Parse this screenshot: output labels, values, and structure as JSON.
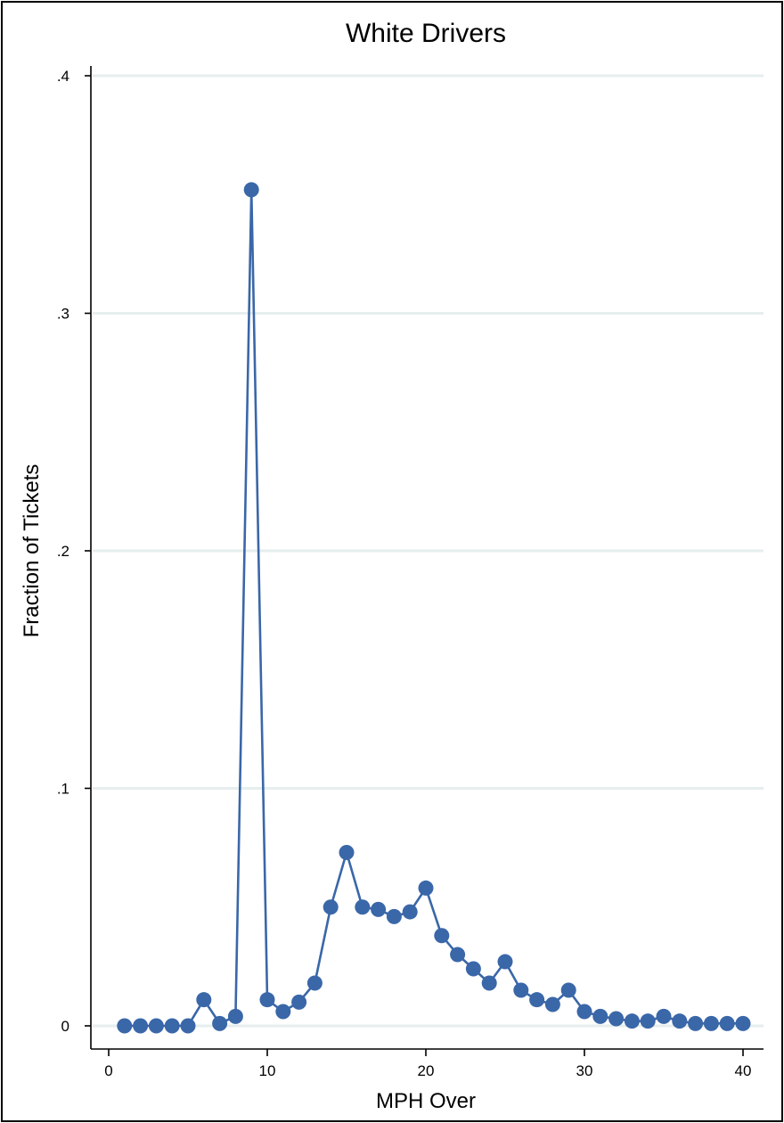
{
  "chart_data": {
    "type": "line",
    "title": "White Drivers",
    "xlabel": "MPH Over",
    "ylabel": "Fraction of Tickets",
    "xlim": [
      -1,
      41
    ],
    "ylim": [
      0,
      0.4
    ],
    "x_ticks": [
      0,
      10,
      20,
      30,
      40
    ],
    "x_tick_labels": [
      "0",
      "10",
      "20",
      "30",
      "40"
    ],
    "y_ticks": [
      0,
      0.1,
      0.2,
      0.3,
      0.4
    ],
    "y_tick_labels": [
      "0",
      ".1",
      ".2",
      ".3",
      ".4"
    ],
    "grid": "horizontal",
    "colors": {
      "series": "#3a67a8",
      "grid": "#e6eeee"
    },
    "series": [
      {
        "x": [
          1,
          2,
          3,
          4,
          5,
          6,
          7,
          8,
          9,
          10,
          11,
          12,
          13,
          14,
          15,
          16,
          17,
          18,
          19,
          20,
          21,
          22,
          23,
          24,
          25,
          26,
          27,
          28,
          29,
          30,
          31,
          32,
          33,
          34,
          35,
          36,
          37,
          38,
          39,
          40
        ],
        "values": [
          0,
          0,
          0,
          0,
          0,
          0.011,
          0.001,
          0.004,
          0.352,
          0.011,
          0.006,
          0.01,
          0.018,
          0.05,
          0.073,
          0.05,
          0.049,
          0.046,
          0.048,
          0.058,
          0.038,
          0.03,
          0.024,
          0.018,
          0.027,
          0.015,
          0.011,
          0.009,
          0.015,
          0.006,
          0.004,
          0.003,
          0.002,
          0.002,
          0.004,
          0.002,
          0.001,
          0.001,
          0.001,
          0.001
        ]
      }
    ]
  }
}
